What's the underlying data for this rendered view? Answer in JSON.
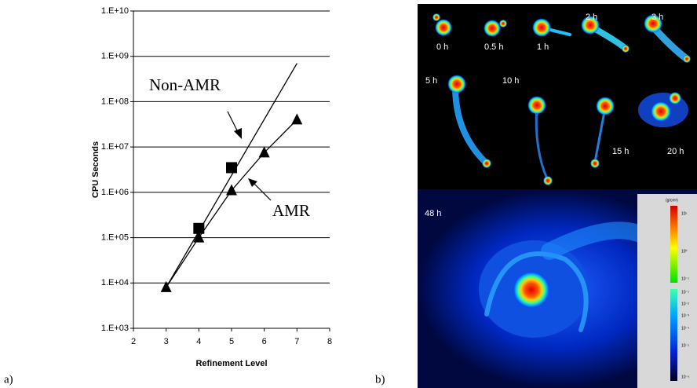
{
  "chart_data": {
    "type": "line",
    "xlabel": "Refinement Level",
    "ylabel": "CPU Seconds",
    "log_y": true,
    "grid": true,
    "xlim": [
      2,
      8
    ],
    "xticks": [
      2,
      3,
      4,
      5,
      6,
      7,
      8
    ],
    "ylim": [
      1000,
      10000000000
    ],
    "yticks": [
      {
        "value": 1000,
        "label": "1.E+03"
      },
      {
        "value": 10000,
        "label": "1.E+04"
      },
      {
        "value": 100000,
        "label": "1.E+05"
      },
      {
        "value": 1000000,
        "label": "1.E+06"
      },
      {
        "value": 10000000,
        "label": "1.E+07"
      },
      {
        "value": 100000000,
        "label": "1.E+08"
      },
      {
        "value": 1000000000,
        "label": "1.E+09"
      },
      {
        "value": 10000000000,
        "label": "1.E+10"
      }
    ],
    "series": [
      {
        "name": "Non-AMR",
        "color": "#000000",
        "marker": "square",
        "x": [
          4,
          5
        ],
        "values": [
          160000,
          3500000
        ],
        "fit_line": {
          "x": [
            3,
            7
          ],
          "values": [
            8000,
            700000000
          ]
        }
      },
      {
        "name": "AMR",
        "color": "#000000",
        "marker": "triangle",
        "x": [
          3,
          4,
          5,
          6,
          7
        ],
        "values": [
          8000,
          100000,
          1100000,
          7500000,
          40000000
        ]
      }
    ]
  },
  "panel_labels": [
    "a)",
    "b)"
  ],
  "image": {
    "time_labels": [
      "0 h",
      "0.5 h",
      "1 h",
      "2 h",
      "3 h",
      "5 h",
      "10 h",
      "15 h",
      "20 h",
      "48 h"
    ],
    "colorbar_unit": "(g/cm³)",
    "colorbar_labels": [
      "10¹",
      "10⁰",
      "10⁻¹",
      "10⁻¹",
      "10⁻²",
      "10⁻³",
      "10⁻⁴",
      "10⁻⁵",
      "10⁻⁶"
    ]
  }
}
